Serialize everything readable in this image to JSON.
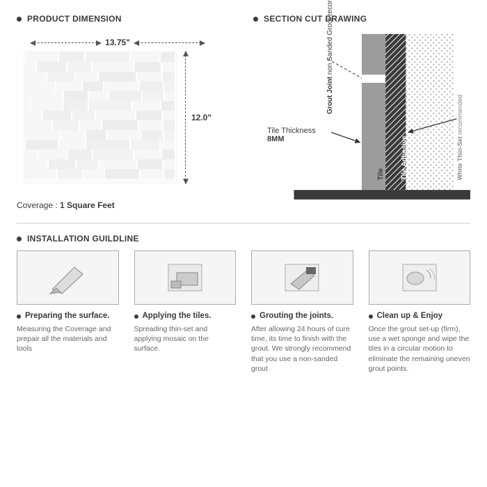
{
  "product_dimension": {
    "title": "PRODUCT DIMENSION",
    "width_label": "13.75\"",
    "height_label": "12.0\"",
    "coverage_label": "Coverage :",
    "coverage_value": "1 Square Feet",
    "tile": {
      "rows": 13,
      "seg_widths_pct": [
        22,
        18,
        30,
        20,
        10
      ],
      "seg_classes": [
        "cA",
        "cB",
        "cC",
        "cA",
        "cD"
      ],
      "offset_pct_per_row": 9
    }
  },
  "section_cut": {
    "title": "SECTION CUT DRAWING",
    "grout_joint_label": "Grout Joint",
    "grout_joint_sub": "non Sanded Grout recomended",
    "thickness_label": "Tile Thickness",
    "thickness_value": "8MM",
    "tile_label": "Tile",
    "adhesive_label": "Tile Adhesive",
    "thinset_label": "White Thin-Set",
    "thinset_sub": "recommended",
    "colors": {
      "tile": "#9c9c9c",
      "adhesive": "#3a3a3a",
      "substrate_dot": "#bfbfbf",
      "bg": "#ffffff",
      "base": "#3a3a3a",
      "line": "#333333"
    }
  },
  "installation": {
    "title": "INSTALLATION GUILDLINE",
    "steps": [
      {
        "title": "Preparing the surface.",
        "desc": "Measuring the Coverage and prepair all the materials and tools",
        "icon": "prep"
      },
      {
        "title": "Applying the tiles.",
        "desc": "Spreading thin-set and applying mosaic on the surface.",
        "icon": "apply"
      },
      {
        "title": "Grouting the joints.",
        "desc": "After allowing 24 hours of cure time, its time to finish with the grout. We strongly recommend that you use a non-sanded grout",
        "icon": "grout"
      },
      {
        "title": "Clean up & Enjoy",
        "desc": "Once the grout set-up (firm), use a wet sponge and wipe the tiles in a circular motion to eliminate the remaining uneven grout points.",
        "icon": "clean"
      }
    ]
  }
}
